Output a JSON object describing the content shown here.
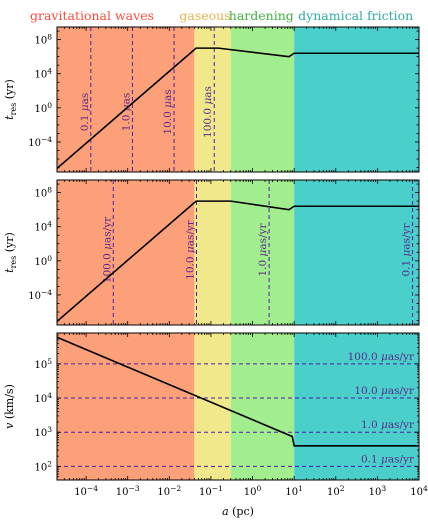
{
  "figure": {
    "regions": [
      {
        "name": "gravitational waves",
        "from_a": 2e-05,
        "to_a": 0.04,
        "fill": "#FCA07A",
        "title_color": "#F44E3E"
      },
      {
        "name": "gaseous",
        "from_a": 0.04,
        "to_a": 0.3,
        "fill": "#F0E88A",
        "title_color": "#E8B34E"
      },
      {
        "name": "hardening",
        "from_a": 0.3,
        "to_a": 10,
        "fill": "#A2EE8E",
        "title_color": "#3FB23F"
      },
      {
        "name": "dynamical friction",
        "from_a": 10,
        "to_a": 10000,
        "fill": "#4ACFCB",
        "title_color": "#2FA9A7"
      }
    ],
    "xlabel": "a (pc)",
    "x_range": [
      2e-05,
      10000
    ],
    "x_scale": "log",
    "x_ticks": [
      0.0001,
      0.001,
      0.01,
      0.1,
      1,
      10,
      100,
      1000,
      10000
    ],
    "x_tick_labels": [
      "10^-4",
      "10^-3",
      "10^-2",
      "10^-1",
      "10^0",
      "10^1",
      "10^2",
      "10^3",
      "10^4"
    ],
    "colors": {
      "curve": "#000000",
      "dashed": "#4B1FA0",
      "annotation": "#5B2A8A"
    }
  },
  "chart_data": [
    {
      "type": "line",
      "panel": "top",
      "ylabel": "t_res (yr)",
      "y_scale": "log",
      "ylim": [
        3e-08,
        3000000000
      ],
      "y_ticks": [
        0.0001,
        1,
        10000,
        100000000
      ],
      "y_tick_labels": [
        "10^-4",
        "10^0",
        "10^4",
        "10^8"
      ],
      "series": [
        {
          "x": [
            2e-05,
            0.044,
            0.15,
            7.5,
            10,
            10000
          ],
          "y": [
            8e-08,
            10000000,
            10000000,
            1000000,
            2500000,
            2500000
          ]
        }
      ],
      "markers": [
        {
          "label": "0.1 μas",
          "x": 0.00013
        },
        {
          "label": "1.0 μas",
          "x": 0.0013
        },
        {
          "label": "10.0 μas",
          "x": 0.013
        },
        {
          "label": "100.0 μas",
          "x": 0.12
        }
      ]
    },
    {
      "type": "line",
      "panel": "middle",
      "ylabel": "t_res (yr)",
      "y_scale": "log",
      "ylim": [
        3e-08,
        3000000000
      ],
      "y_ticks": [
        0.0001,
        1,
        10000,
        100000000
      ],
      "y_tick_labels": [
        "10^-4",
        "10^0",
        "10^4",
        "10^8"
      ],
      "series": [
        {
          "x": [
            2e-05,
            0.044,
            0.3,
            7.5,
            10,
            10000
          ],
          "y": [
            8e-08,
            10000000,
            10000000,
            1000000,
            2500000,
            2500000
          ]
        }
      ],
      "markers": [
        {
          "label": "100.0 μas/yr",
          "x": 0.00045
        },
        {
          "label": "10.0 μas/yr",
          "x": 0.045
        },
        {
          "label": "1.0 μas/yr",
          "x": 2.5
        },
        {
          "label": "0.1 μas/yr",
          "x": 7000
        }
      ]
    },
    {
      "type": "line",
      "panel": "bottom",
      "ylabel": "v (km/s)",
      "y_scale": "log",
      "ylim": [
        40,
        800000
      ],
      "y_ticks": [
        100,
        1000,
        10000,
        100000
      ],
      "y_tick_labels": [
        "10^2",
        "10^3",
        "10^4",
        "10^5"
      ],
      "series": [
        {
          "x": [
            2e-05,
            9,
            10,
            10000
          ],
          "y": [
            600000,
            750,
            400,
            400
          ]
        }
      ],
      "levels": [
        {
          "label": "100.0 μas/yr",
          "y": 100000
        },
        {
          "label": "10.0 μas/yr",
          "y": 10000
        },
        {
          "label": "1.0 μas/yr",
          "y": 1000
        },
        {
          "label": "0.1 μas/yr",
          "y": 100
        }
      ]
    }
  ]
}
